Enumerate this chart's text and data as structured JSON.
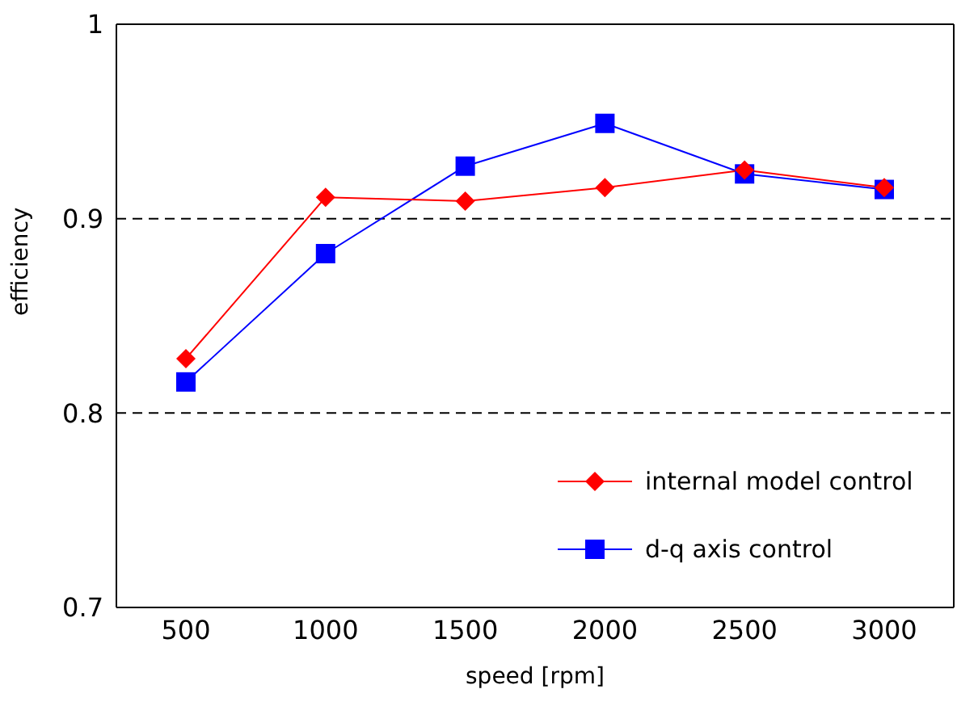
{
  "chart_data": {
    "type": "line",
    "xlabel": "speed [rpm]",
    "ylabel": "efficiency",
    "categories": [
      "500",
      "1000",
      "1500",
      "2000",
      "2500",
      "3000"
    ],
    "series": [
      {
        "name": "internal model control",
        "color": "#ff0000",
        "marker": "diamond",
        "values": [
          0.828,
          0.911,
          0.909,
          0.916,
          0.925,
          0.916
        ]
      },
      {
        "name": "d-q axis control",
        "color": "#0000ff",
        "marker": "square",
        "values": [
          0.816,
          0.882,
          0.927,
          0.949,
          0.923,
          0.915
        ]
      }
    ],
    "ylim": [
      0.7,
      1
    ],
    "yticks": [
      0.7,
      0.8,
      0.9,
      1
    ],
    "grid": "y",
    "legend": "bottom right"
  }
}
